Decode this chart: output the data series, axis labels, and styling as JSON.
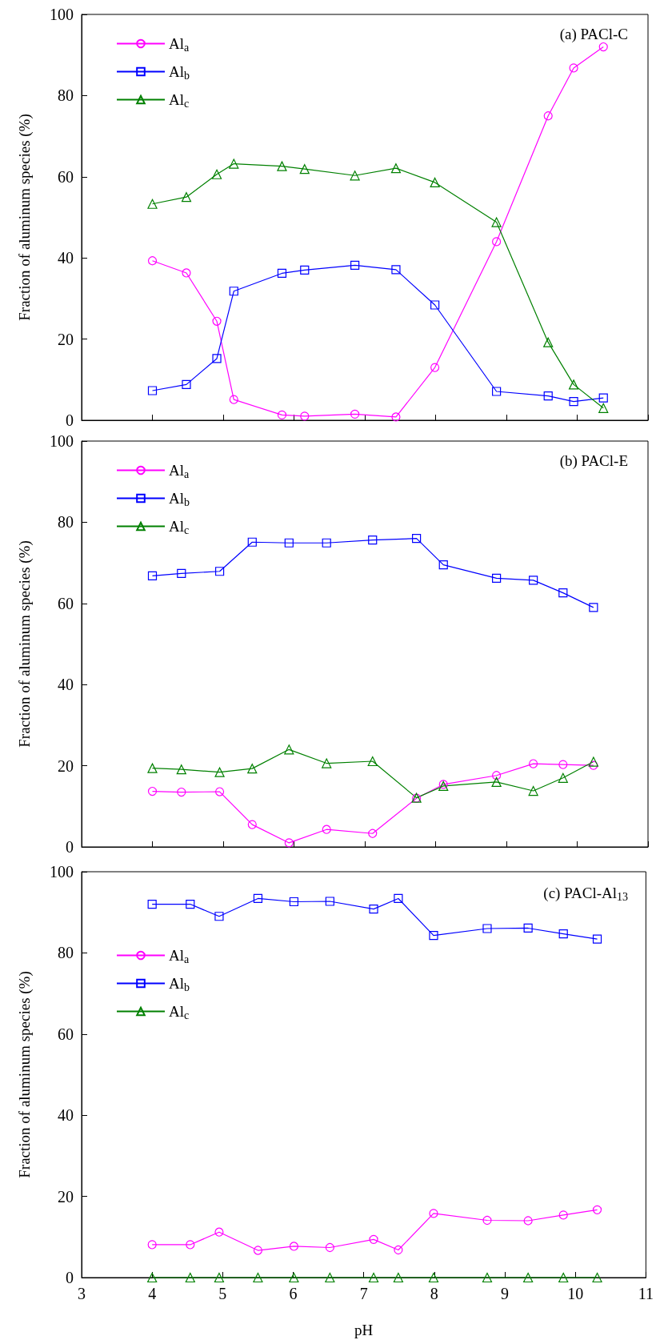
{
  "chart_data": [
    {
      "type": "line",
      "title": "(a) PACl-C",
      "ylabel": "Fraction of aluminum species (%)",
      "xlim": [
        3,
        11
      ],
      "xticks": [
        3,
        4,
        5,
        6,
        7,
        8,
        9,
        10,
        11
      ],
      "ylim": [
        0,
        100
      ],
      "yticks": [
        0,
        20,
        40,
        60,
        80,
        100
      ],
      "tick_labels": "y",
      "legend": "top left",
      "grid": false,
      "x": [
        4.0,
        4.48,
        4.91,
        5.15,
        5.83,
        6.15,
        6.86,
        7.44,
        7.99,
        8.86,
        9.59,
        9.95,
        10.37
      ],
      "series": [
        {
          "name": "Al$_{a}$",
          "color": "#ff00ff",
          "marker": "circle",
          "values": [
            39.3,
            36.3,
            24.4,
            5.1,
            1.3,
            1.0,
            1.5,
            0.8,
            13,
            44,
            75,
            86.8,
            92
          ]
        },
        {
          "name": "Al$_{b}$",
          "color": "#0000ff",
          "marker": "square",
          "values": [
            7.3,
            8.8,
            15.2,
            31.8,
            36.2,
            37,
            38.2,
            37.1,
            28.4,
            7.1,
            6,
            4.6,
            5.5
          ]
        },
        {
          "name": "Al$_{c}$",
          "color": "#008000",
          "marker": "triangle",
          "values": [
            53.3,
            55,
            60.6,
            63.2,
            62.6,
            61.9,
            60.3,
            62.1,
            58.6,
            48.8,
            19.2,
            8.8,
            3
          ]
        }
      ]
    },
    {
      "type": "line",
      "title": "(b) PACl-E",
      "ylabel": "Fraction of aluminum species (%)",
      "xlim": [
        3,
        11
      ],
      "xticks": [
        3,
        4,
        5,
        6,
        7,
        8,
        9,
        10,
        11
      ],
      "ylim": [
        0,
        100
      ],
      "yticks": [
        0,
        20,
        40,
        60,
        80,
        100
      ],
      "tick_labels": "y",
      "legend": "top left",
      "grid": false,
      "x": [
        4.0,
        4.41,
        4.95,
        5.41,
        5.93,
        6.46,
        7.11,
        7.73,
        8.11,
        8.86,
        9.38,
        9.8,
        10.23
      ],
      "series": [
        {
          "name": "Al$_{a}$",
          "color": "#ff00ff",
          "marker": "circle",
          "values": [
            13.7,
            13.5,
            13.6,
            5.5,
            1.0,
            4.3,
            3.3,
            12,
            15.4,
            17.6,
            20.5,
            20.3,
            20.1
          ]
        },
        {
          "name": "Al$_{b}$",
          "color": "#0000ff",
          "marker": "square",
          "values": [
            66.8,
            67.4,
            67.9,
            75.1,
            74.9,
            74.9,
            75.6,
            76,
            69.5,
            66.2,
            65.7,
            62.6,
            59
          ]
        },
        {
          "name": "Al$_{c}$",
          "color": "#008000",
          "marker": "triangle",
          "values": [
            19.4,
            19.1,
            18.4,
            19.3,
            24,
            20.6,
            21.1,
            12.1,
            15,
            16,
            13.8,
            17,
            21
          ]
        }
      ]
    },
    {
      "type": "line",
      "title": "(c) PACl-Al$_{13}$",
      "xlabel": "pH",
      "ylabel": "Fraction of aluminum species (%)",
      "xlim": [
        3,
        11
      ],
      "xticks": [
        3,
        4,
        5,
        6,
        7,
        8,
        9,
        10,
        11
      ],
      "ylim": [
        0,
        100
      ],
      "yticks": [
        0,
        20,
        40,
        60,
        80,
        100
      ],
      "legend": "left",
      "grid": false,
      "x": [
        4.0,
        4.54,
        4.95,
        5.5,
        6.01,
        6.52,
        7.14,
        7.49,
        7.99,
        8.75,
        9.33,
        9.83,
        10.31
      ],
      "series": [
        {
          "name": "Al$_{a}$",
          "color": "#ff00ff",
          "marker": "circle",
          "values": [
            8.1,
            8.1,
            11.2,
            6.7,
            7.7,
            7.4,
            9.4,
            6.8,
            15.8,
            14.1,
            14,
            15.4,
            16.7
          ]
        },
        {
          "name": "Al$_{b}$",
          "color": "#0000ff",
          "marker": "square",
          "values": [
            92,
            92,
            89,
            93.4,
            92.6,
            92.7,
            90.8,
            93.4,
            84.3,
            86,
            86.1,
            84.7,
            83.4
          ]
        },
        {
          "name": "Al$_{c}$",
          "color": "#008000",
          "marker": "triangle",
          "values": [
            0,
            0,
            0,
            0,
            0,
            0,
            0,
            0,
            0,
            0,
            0,
            0,
            0
          ]
        }
      ]
    }
  ]
}
